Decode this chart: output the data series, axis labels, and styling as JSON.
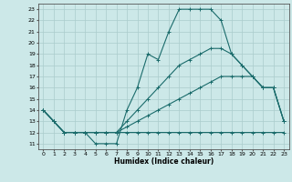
{
  "title": "",
  "xlabel": "Humidex (Indice chaleur)",
  "bg_color": "#cce8e8",
  "line_color": "#1a6b6b",
  "grid_color": "#aacccc",
  "xlim": [
    -0.5,
    23.5
  ],
  "ylim": [
    10.5,
    23.5
  ],
  "yticks": [
    11,
    12,
    13,
    14,
    15,
    16,
    17,
    18,
    19,
    20,
    21,
    22,
    23
  ],
  "xticks": [
    0,
    1,
    2,
    3,
    4,
    5,
    6,
    7,
    8,
    9,
    10,
    11,
    12,
    13,
    14,
    15,
    16,
    17,
    18,
    19,
    20,
    21,
    22,
    23
  ],
  "line1_x": [
    0,
    1,
    2,
    3,
    4,
    5,
    6,
    7,
    8,
    9,
    10,
    11,
    12,
    13,
    14,
    15,
    16,
    17,
    18,
    19,
    20,
    21,
    22,
    23
  ],
  "line1_y": [
    14,
    13,
    12,
    12,
    12,
    11,
    11,
    11,
    14,
    16,
    19,
    18.5,
    21,
    23,
    23,
    23,
    23,
    22,
    19,
    18,
    17,
    16,
    16,
    13
  ],
  "line2_x": [
    0,
    1,
    2,
    3,
    4,
    5,
    6,
    7,
    8,
    9,
    10,
    11,
    12,
    13,
    14,
    15,
    16,
    17,
    18,
    19,
    20,
    21,
    22,
    23
  ],
  "line2_y": [
    14,
    13,
    12,
    12,
    12,
    12,
    12,
    12,
    12,
    12,
    12,
    12,
    12,
    12,
    12,
    12,
    12,
    12,
    12,
    12,
    12,
    12,
    12,
    12
  ],
  "line3_x": [
    0,
    1,
    2,
    3,
    4,
    5,
    6,
    7,
    8,
    9,
    10,
    11,
    12,
    13,
    14,
    15,
    16,
    17,
    18,
    19,
    20,
    21,
    22,
    23
  ],
  "line3_y": [
    14,
    13,
    12,
    12,
    12,
    12,
    12,
    12,
    12.5,
    13,
    13.5,
    14,
    14.5,
    15,
    15.5,
    16,
    16.5,
    17,
    17,
    17,
    17,
    16,
    16,
    13
  ],
  "line4_x": [
    0,
    1,
    2,
    3,
    4,
    5,
    6,
    7,
    8,
    9,
    10,
    11,
    12,
    13,
    14,
    15,
    16,
    17,
    18,
    19,
    20,
    21,
    22,
    23
  ],
  "line4_y": [
    14,
    13,
    12,
    12,
    12,
    12,
    12,
    12,
    13,
    14,
    15,
    16,
    17,
    18,
    18.5,
    19,
    19.5,
    19.5,
    19,
    18,
    17,
    16,
    16,
    13
  ]
}
